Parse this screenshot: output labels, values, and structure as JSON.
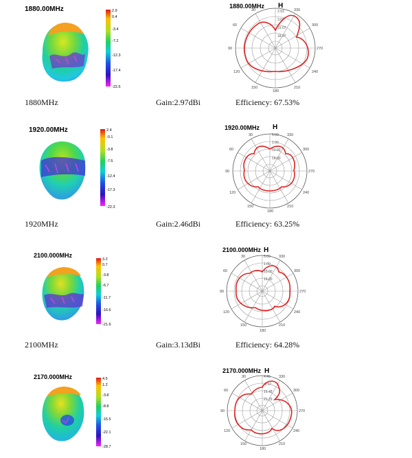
{
  "sections": [
    {
      "pattern_title": "1880.00MHz",
      "scale": [
        "2.9",
        "0.4",
        "-3.4",
        "-7.2",
        "-12.3",
        "-17.4",
        "-22.5"
      ],
      "polar_title": "1880.00MHz",
      "plane": "H",
      "rings": [
        "2.93",
        "3.07",
        "15.07",
        "18.07"
      ],
      "caption": {
        "freq": "1880MHz",
        "gain": "Gain:2.97dBi",
        "efficiency": "Efficiency: 67.53%"
      }
    },
    {
      "pattern_title": "1920.00MHz",
      "scale": [
        "2.4",
        "-0.1",
        "-3.8",
        "-7.5",
        "-12.4",
        "-17.3",
        "-22.3"
      ],
      "polar_title": "1920.00MHz",
      "plane": "H",
      "rings": [
        "5.00",
        "1.00",
        "13.00",
        "19.00"
      ],
      "caption": {
        "freq": "1920MHz",
        "gain": "Gain:2.46dBi",
        "efficiency": "Efficiency: 63.25%"
      }
    },
    {
      "pattern_title": "2100.000MHz",
      "scale": [
        "3.2",
        "0.7",
        "-3.8",
        "-6.7",
        "-11.7",
        "-16.6",
        "-21.6"
      ],
      "polar_title": "2100.000MHz",
      "plane": "H",
      "rings": [
        "5.00",
        "1.00",
        "13.00",
        "19.00"
      ],
      "caption": {
        "freq": "2100MHz",
        "gain": "Gain:3.13dBi",
        "efficiency": "Efficiency: 64.28%"
      }
    },
    {
      "pattern_title": "2170.000MHz",
      "scale": [
        "4.5",
        "1.2",
        "-3.8",
        "-8.8",
        "-15.5",
        "-22.1",
        "-28.7"
      ],
      "polar_title": "2170.000MHz",
      "plane": "H",
      "rings": [
        "4.46",
        "-2.17",
        "15.48",
        "21.79"
      ],
      "caption": null
    }
  ],
  "angle_labels": [
    "330",
    "300",
    "270",
    "240",
    "210",
    "180",
    "150",
    "120",
    "90",
    "60",
    "30"
  ],
  "colors": {
    "trace": "#e02020",
    "grid": "#9a9a9a"
  }
}
